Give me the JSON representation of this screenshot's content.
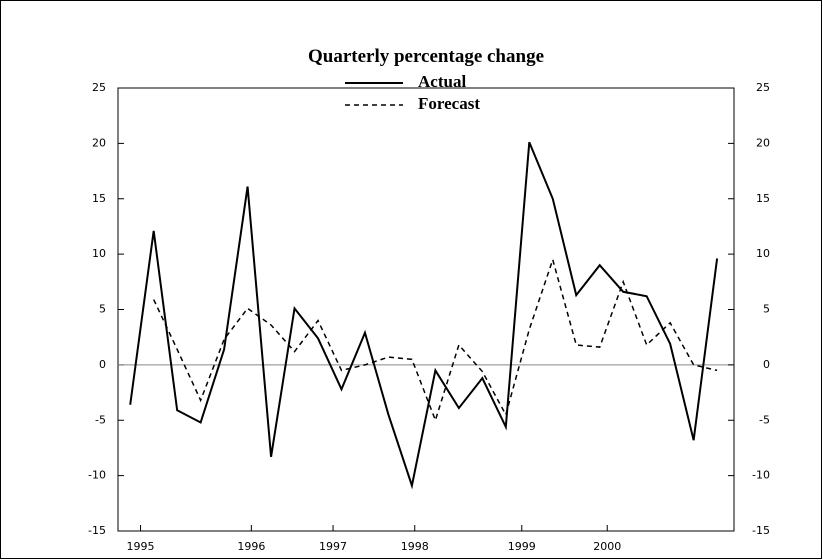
{
  "chart_data": {
    "type": "line",
    "title": "Quarterly percentage change",
    "x": [
      1994.75,
      1995.0,
      1995.25,
      1995.5,
      1995.75,
      1996.0,
      1996.25,
      1996.5,
      1996.75,
      1997.0,
      1997.25,
      1997.5,
      1997.75,
      1998.0,
      1998.25,
      1998.5,
      1998.75,
      1999.0,
      1999.25,
      1999.5,
      1999.75,
      2000.0,
      2000.25,
      2000.5,
      2000.75,
      2001.0
    ],
    "series": [
      {
        "name": "Actual",
        "color": "#000000",
        "dash": false,
        "values": [
          -3.6,
          12.1,
          -4.1,
          -5.2,
          1.4,
          16.1,
          -8.3,
          5.1,
          2.4,
          -2.2,
          2.9,
          -4.5,
          -10.9,
          -0.5,
          -3.9,
          -1.2,
          -5.6,
          20.1,
          15.0,
          6.3,
          9.0,
          6.6,
          6.2,
          1.9,
          -6.8,
          9.6
        ]
      },
      {
        "name": "Forecast",
        "color": "#000000",
        "dash": true,
        "values": [
          null,
          5.9,
          1.4,
          -3.2,
          2.3,
          5.1,
          3.6,
          1.2,
          4.0,
          -0.5,
          0,
          0.7,
          0.5,
          -5.0,
          1.8,
          -0.6,
          -4.5,
          3.2,
          9.5,
          1.8,
          1.6,
          7.5,
          1.8,
          3.8,
          0.0,
          -0.5
        ]
      }
    ],
    "xlim": [
      1994.62,
      2001.18
    ],
    "xticks": [
      {
        "value": 1994.86,
        "label": "1995"
      },
      {
        "value": 1996.04,
        "label": "1996"
      },
      {
        "value": 1996.91,
        "label": "1997"
      },
      {
        "value": 1997.78,
        "label": "1998"
      },
      {
        "value": 1998.92,
        "label": "1999"
      },
      {
        "value": 1999.83,
        "label": "2000"
      }
    ],
    "ylim": [
      -15,
      25
    ],
    "yticks": [
      -15,
      -10,
      -5,
      0,
      5,
      10,
      15,
      20,
      25
    ],
    "y2lim": [
      -15,
      25
    ],
    "y2ticks": [
      -15,
      -10,
      -5,
      0,
      5,
      10,
      15,
      20,
      25
    ]
  }
}
